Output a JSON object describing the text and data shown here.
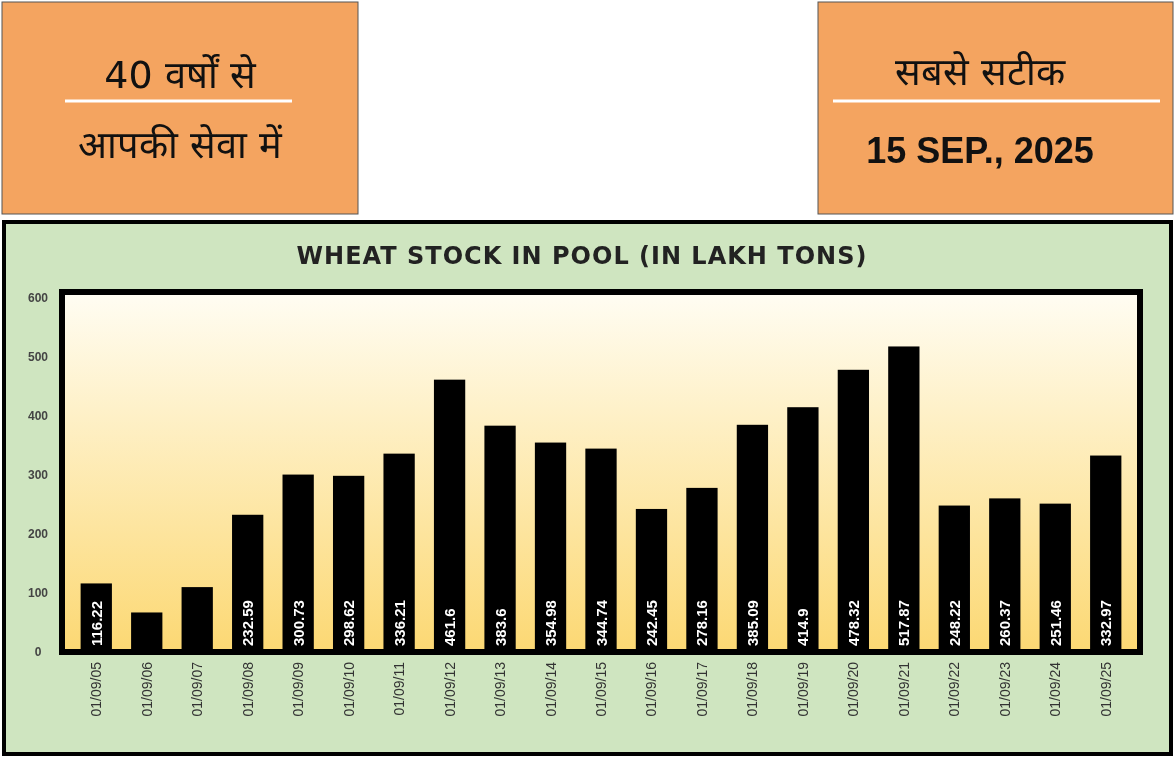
{
  "chart_data": {
    "type": "bar",
    "title": "WHEAT STOCK IN POOL (IN LAKH TONS)",
    "annotations": [
      "40 वर्षों से आपकी सेवा में",
      "सबसे सटीक",
      "15 SEP., 2025"
    ],
    "categories": [
      "01/09/05",
      "01/09/06",
      "01/09/07",
      "01/09/08",
      "01/09/09",
      "01/09/10",
      "01/09/11",
      "01/09/12",
      "01/09/13",
      "01/09/14",
      "01/09/15",
      "01/09/16",
      "01/09/17",
      "01/09/18",
      "01/09/19",
      "01/09/20",
      "01/09/21",
      "01/09/22",
      "01/09/23",
      "01/09/24",
      "01/09/25"
    ],
    "values": [
      116.22,
      67,
      110,
      232.59,
      300.73,
      298.62,
      336.21,
      461.6,
      383.6,
      354.98,
      344.74,
      242.45,
      278.16,
      385.09,
      414.9,
      478.32,
      517.87,
      248.22,
      260.37,
      251.46,
      332.97
    ],
    "value_labels": [
      "116.22",
      null,
      null,
      "232.59",
      "300.73",
      "298.62",
      "336.21",
      "461.6",
      "383.6",
      "354.98",
      "344.74",
      "242.45",
      "278.16",
      "385.09",
      "414.9",
      "478.32",
      "517.87",
      "248.22",
      "260.37",
      "251.46",
      "332.97"
    ],
    "color": "#000000",
    "ylim": [
      0,
      600
    ],
    "yticks": [
      0,
      100,
      200,
      300,
      400,
      500,
      600
    ],
    "grid": false
  }
}
